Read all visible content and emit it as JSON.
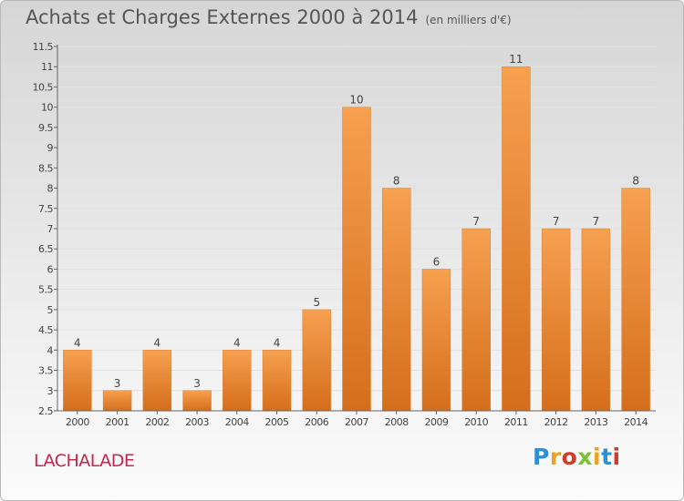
{
  "header": {
    "title": "Achats et Charges Externes 2000 à 2014",
    "unit": "(en milliers d'€)"
  },
  "footer": {
    "commune": "LACHALADE",
    "brand": "Proxiti",
    "brand_colors": [
      "#2f8fd6",
      "#e8a420",
      "#d13c2a",
      "#7cbf3d",
      "#e8a420",
      "#2f8fd6",
      "#d13c2a"
    ]
  },
  "chart_data": {
    "type": "bar",
    "categories": [
      "2000",
      "2001",
      "2002",
      "2003",
      "2004",
      "2005",
      "2006",
      "2007",
      "2008",
      "2009",
      "2010",
      "2011",
      "2012",
      "2013",
      "2014"
    ],
    "values": [
      4,
      3,
      4,
      3,
      4,
      4,
      5,
      10,
      8,
      6,
      7,
      11,
      7,
      7,
      8
    ],
    "ylim": [
      2.5,
      11.5
    ],
    "yticks": [
      "2.5",
      "3",
      "3.5",
      "4",
      "4.5",
      "5",
      "5.5",
      "6",
      "6.5",
      "7",
      "7.5",
      "8",
      "8.5",
      "9",
      "9.5",
      "10",
      "10.5",
      "11",
      "11.5"
    ],
    "grid": true,
    "bar_color": "#f0903a"
  }
}
